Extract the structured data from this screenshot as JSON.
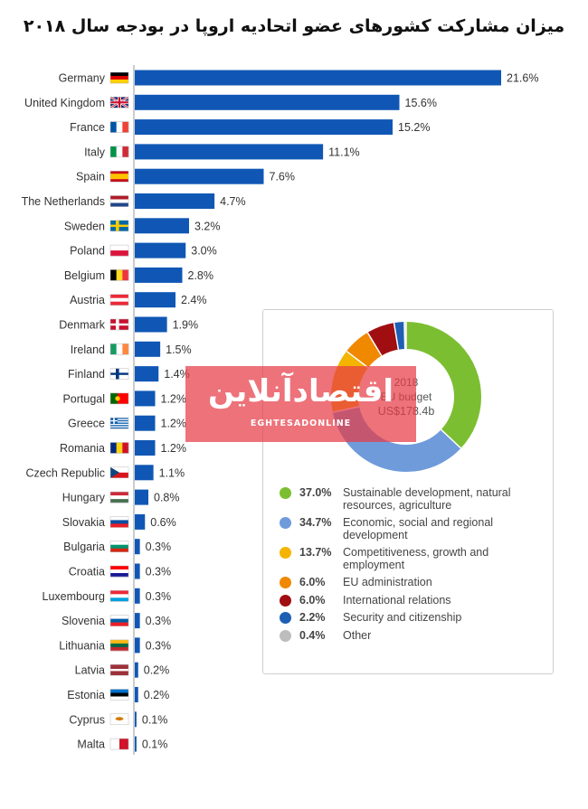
{
  "title": "میزان مشارکت کشورهای عضو اتحادیه اروپا در بودجه سال ۲۰۱۸",
  "colors": {
    "bar": "#1057b5",
    "axis": "#9a9a9a"
  },
  "chart_data": [
    {
      "type": "bar",
      "orientation": "horizontal",
      "title": "میزان مشارکت کشورهای عضو اتحادیه اروپا در بودجه سال ۲۰۱۸",
      "categories": [
        "Germany",
        "United Kingdom",
        "France",
        "Italy",
        "Spain",
        "The Netherlands",
        "Sweden",
        "Poland",
        "Belgium",
        "Austria",
        "Denmark",
        "Ireland",
        "Finland",
        "Portugal",
        "Greece",
        "Romania",
        "Czech Republic",
        "Hungary",
        "Slovakia",
        "Bulgaria",
        "Croatia",
        "Luxembourg",
        "Slovenia",
        "Lithuania",
        "Latvia",
        "Estonia",
        "Cyprus",
        "Malta"
      ],
      "values": [
        21.6,
        15.6,
        15.2,
        11.1,
        7.6,
        4.7,
        3.2,
        3.0,
        2.8,
        2.4,
        1.9,
        1.5,
        1.4,
        1.2,
        1.2,
        1.2,
        1.1,
        0.8,
        0.6,
        0.3,
        0.3,
        0.3,
        0.3,
        0.3,
        0.2,
        0.2,
        0.1,
        0.1
      ],
      "value_labels": [
        "21.6%",
        "15.6%",
        "15.2%",
        "11.1%",
        "7.6%",
        "4.7%",
        "3.2%",
        "3.0%",
        "2.8%",
        "2.4%",
        "1.9%",
        "1.5%",
        "1.4%",
        "1.2%",
        "1.2%",
        "1.2%",
        "1.1%",
        "0.8%",
        "0.6%",
        "0.3%",
        "0.3%",
        "0.3%",
        "0.3%",
        "0.3%",
        "0.2%",
        "0.2%",
        "0.1%",
        "0.1%"
      ],
      "flags": [
        {
          "t": "h",
          "c": [
            "#000000",
            "#dd0000",
            "#ffce00"
          ]
        },
        {
          "t": "uk"
        },
        {
          "t": "v",
          "c": [
            "#0055a4",
            "#ffffff",
            "#ef4135"
          ]
        },
        {
          "t": "v",
          "c": [
            "#009246",
            "#ffffff",
            "#ce2b37"
          ]
        },
        {
          "t": "es"
        },
        {
          "t": "h",
          "c": [
            "#ae1c28",
            "#ffffff",
            "#21468b"
          ]
        },
        {
          "t": "nordic",
          "bg": "#006aa7",
          "cross": "#fecc00"
        },
        {
          "t": "h",
          "c": [
            "#ffffff",
            "#dc143c"
          ]
        },
        {
          "t": "v",
          "c": [
            "#000000",
            "#fdda24",
            "#ef3340"
          ]
        },
        {
          "t": "h",
          "c": [
            "#ed2939",
            "#ffffff",
            "#ed2939"
          ]
        },
        {
          "t": "nordic",
          "bg": "#c8102e",
          "cross": "#ffffff"
        },
        {
          "t": "v",
          "c": [
            "#169b62",
            "#ffffff",
            "#ff883e"
          ]
        },
        {
          "t": "nordic",
          "bg": "#ffffff",
          "cross": "#003580"
        },
        {
          "t": "pt"
        },
        {
          "t": "gr"
        },
        {
          "t": "v",
          "c": [
            "#002b7f",
            "#fcd116",
            "#ce1126"
          ]
        },
        {
          "t": "cz"
        },
        {
          "t": "h",
          "c": [
            "#ce2939",
            "#ffffff",
            "#477050"
          ]
        },
        {
          "t": "h",
          "c": [
            "#ffffff",
            "#0b4ea2",
            "#ee1c25"
          ]
        },
        {
          "t": "h",
          "c": [
            "#ffffff",
            "#00966e",
            "#d62612"
          ]
        },
        {
          "t": "h",
          "c": [
            "#ff0000",
            "#ffffff",
            "#171796"
          ]
        },
        {
          "t": "h",
          "c": [
            "#ed2939",
            "#ffffff",
            "#00a1de"
          ]
        },
        {
          "t": "h",
          "c": [
            "#ffffff",
            "#005da4",
            "#ed1c24"
          ]
        },
        {
          "t": "h",
          "c": [
            "#fdb913",
            "#006a44",
            "#c1272d"
          ]
        },
        {
          "t": "lv"
        },
        {
          "t": "h",
          "c": [
            "#0072ce",
            "#000000",
            "#ffffff"
          ]
        },
        {
          "t": "cy"
        },
        {
          "t": "mt"
        }
      ]
    },
    {
      "type": "pie",
      "center_text": [
        "2018",
        "EU budget",
        "US$178.4b"
      ],
      "slices": [
        {
          "label": "Sustainable development, natural resources, agriculture",
          "value": 37.0,
          "label_text": "37.0%",
          "color": "#7cbe31"
        },
        {
          "label": "Economic, social and regional development",
          "value": 34.7,
          "label_text": "34.7%",
          "color": "#6f9bdb"
        },
        {
          "label": "Competitiveness, growth and employment",
          "value": 13.7,
          "label_text": "13.7%",
          "color": "#f4b400"
        },
        {
          "label": "EU administration",
          "value": 6.0,
          "label_text": "6.0%",
          "color": "#f08800"
        },
        {
          "label": "International relations",
          "value": 6.0,
          "label_text": "6.0%",
          "color": "#a00e12"
        },
        {
          "label": "Security and citizenship",
          "value": 2.2,
          "label_text": "2.2%",
          "color": "#1e5fb4"
        },
        {
          "label": "Other",
          "value": 0.4,
          "label_text": "0.4%",
          "color": "#bdbdbd"
        }
      ]
    }
  ],
  "watermark": {
    "name_fa": "اقتصادآنلاین",
    "name_en": "EGHTESADONLINE",
    "color": "#e63c46"
  }
}
